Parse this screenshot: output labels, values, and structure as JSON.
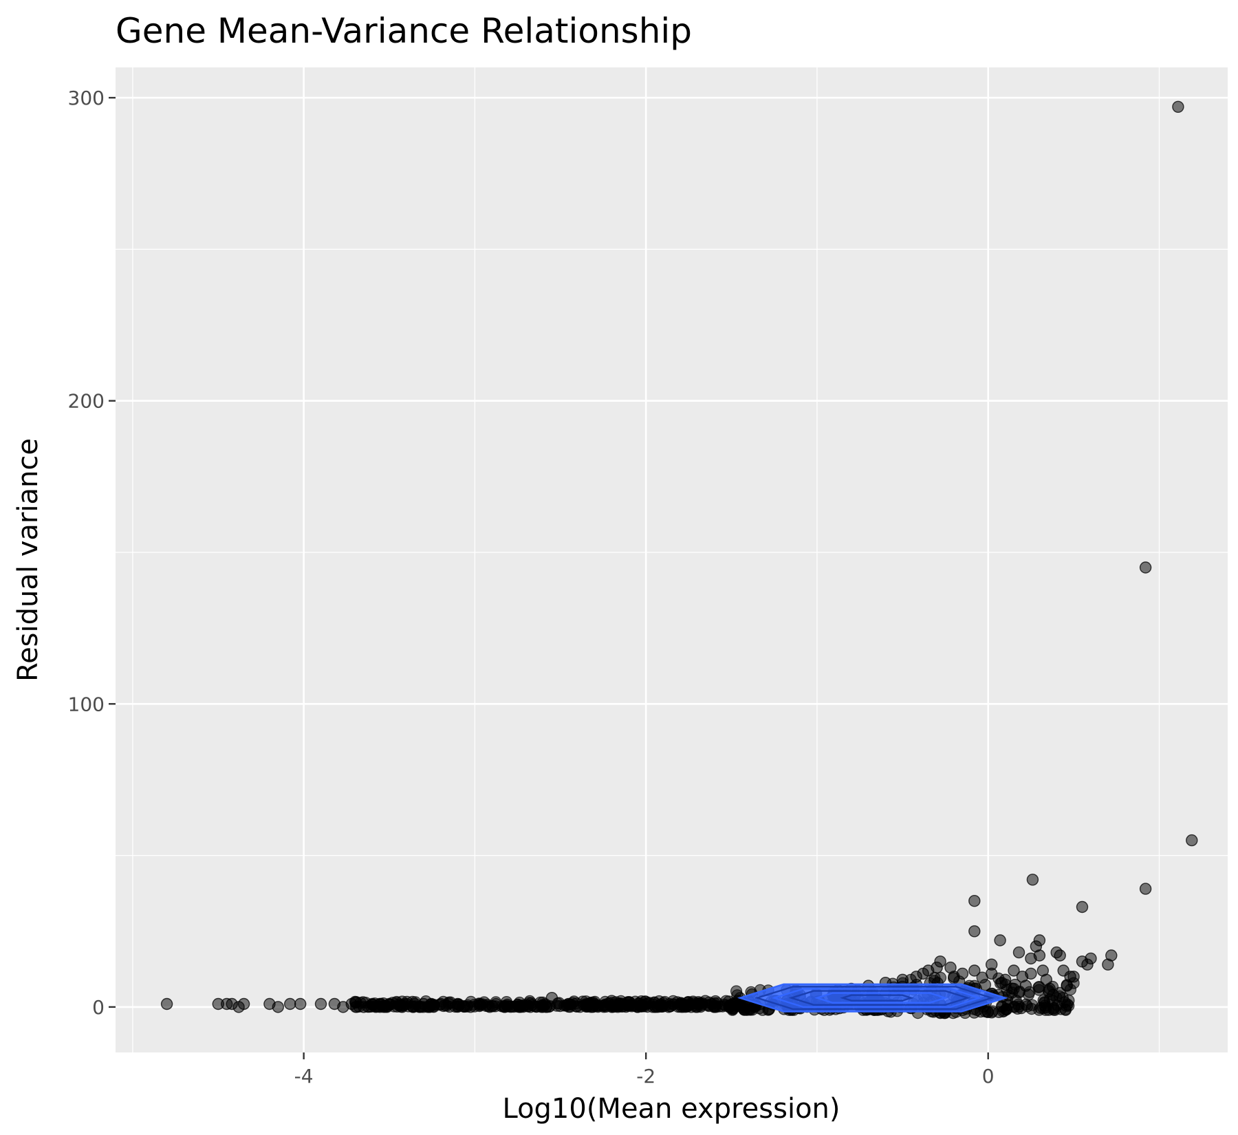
{
  "chart_data": {
    "type": "scatter",
    "title": "Gene Mean-Variance Relationship",
    "xlabel": "Log10(Mean expression)",
    "ylabel": "Residual variance",
    "xlim": [
      -5.1,
      1.4
    ],
    "ylim": [
      -15,
      310
    ],
    "x_ticks": [
      -4,
      -2,
      0
    ],
    "x_tick_labels": [
      "-4",
      "-2",
      "0"
    ],
    "y_ticks": [
      0,
      100,
      200,
      300
    ],
    "y_tick_labels": [
      "0",
      "100",
      "200",
      "300"
    ],
    "grid": true,
    "panel_background": "#ebebeb",
    "point_color": "#000000",
    "point_opacity": 0.5,
    "density_color": "#3366ff",
    "points": [
      [
        -4.8,
        1
      ],
      [
        -4.5,
        1
      ],
      [
        -4.45,
        1
      ],
      [
        -4.42,
        1
      ],
      [
        -4.38,
        0
      ],
      [
        -4.35,
        1
      ],
      [
        -4.2,
        1
      ],
      [
        -4.15,
        0
      ],
      [
        -4.08,
        1
      ],
      [
        -4.02,
        1
      ],
      [
        -3.9,
        1
      ],
      [
        -3.82,
        1
      ],
      [
        -3.77,
        0
      ],
      [
        -3.72,
        1
      ],
      [
        -3.65,
        0
      ],
      [
        -3.6,
        1
      ],
      [
        -3.55,
        1
      ],
      [
        -3.5,
        1
      ],
      [
        -3.4,
        1
      ],
      [
        -3.35,
        1
      ],
      [
        -3.3,
        1
      ],
      [
        -3.2,
        1
      ],
      [
        -3.1,
        1
      ],
      [
        -2.55,
        3
      ],
      [
        -2.2,
        2
      ],
      [
        -1.4,
        2
      ],
      [
        -1.1,
        4
      ],
      [
        -0.9,
        5
      ],
      [
        -0.8,
        6
      ],
      [
        -0.7,
        7
      ],
      [
        -0.6,
        8
      ],
      [
        -0.5,
        9
      ],
      [
        -0.42,
        10
      ],
      [
        -0.38,
        11
      ],
      [
        -0.35,
        12
      ],
      [
        -0.3,
        13
      ],
      [
        -0.28,
        15
      ],
      [
        -0.22,
        13
      ],
      [
        -0.2,
        10
      ],
      [
        -0.15,
        11
      ],
      [
        -0.08,
        35
      ],
      [
        -0.08,
        25
      ],
      [
        -0.08,
        12
      ],
      [
        0.02,
        14
      ],
      [
        0.02,
        11
      ],
      [
        0.07,
        22
      ],
      [
        0.08,
        8
      ],
      [
        0.1,
        9
      ],
      [
        0.15,
        12
      ],
      [
        0.15,
        6
      ],
      [
        0.18,
        18
      ],
      [
        0.2,
        10
      ],
      [
        0.22,
        7
      ],
      [
        0.25,
        16
      ],
      [
        0.25,
        11
      ],
      [
        0.26,
        42
      ],
      [
        0.28,
        20
      ],
      [
        0.3,
        22
      ],
      [
        0.3,
        17
      ],
      [
        0.32,
        12
      ],
      [
        0.34,
        9
      ],
      [
        0.36,
        6
      ],
      [
        0.38,
        4
      ],
      [
        0.4,
        18
      ],
      [
        0.42,
        17
      ],
      [
        0.44,
        12
      ],
      [
        0.46,
        7
      ],
      [
        0.48,
        10
      ],
      [
        0.5,
        10
      ],
      [
        0.55,
        33
      ],
      [
        0.55,
        15
      ],
      [
        0.58,
        14
      ],
      [
        0.6,
        16
      ],
      [
        0.7,
        14
      ],
      [
        0.72,
        17
      ],
      [
        0.92,
        39
      ],
      [
        0.92,
        145
      ],
      [
        1.11,
        297
      ],
      [
        1.19,
        55
      ]
    ],
    "dense_band": [
      {
        "x_from": -3.7,
        "x_to": -1.5,
        "y_from": 0,
        "y_to": 2
      },
      {
        "x_from": -1.5,
        "x_to": -0.6,
        "y_from": -1,
        "y_to": 6
      },
      {
        "x_from": -0.6,
        "x_to": 0.1,
        "y_from": -2,
        "y_to": 10
      },
      {
        "x_from": 0.1,
        "x_to": 0.5,
        "y_from": -1,
        "y_to": 8
      }
    ],
    "density_contours": [
      {
        "x_from": -1.45,
        "x_to": 0.1,
        "half_height": 4.5
      },
      {
        "x_from": -1.35,
        "x_to": 0.02,
        "half_height": 3.7
      },
      {
        "x_from": -1.25,
        "x_to": -0.05,
        "half_height": 3.0
      },
      {
        "x_from": -1.15,
        "x_to": -0.12,
        "half_height": 2.3
      },
      {
        "x_from": -1.0,
        "x_to": -0.25,
        "half_height": 1.6
      },
      {
        "x_from": -0.85,
        "x_to": -0.45,
        "half_height": 0.9
      }
    ],
    "density_center_y": 3
  }
}
